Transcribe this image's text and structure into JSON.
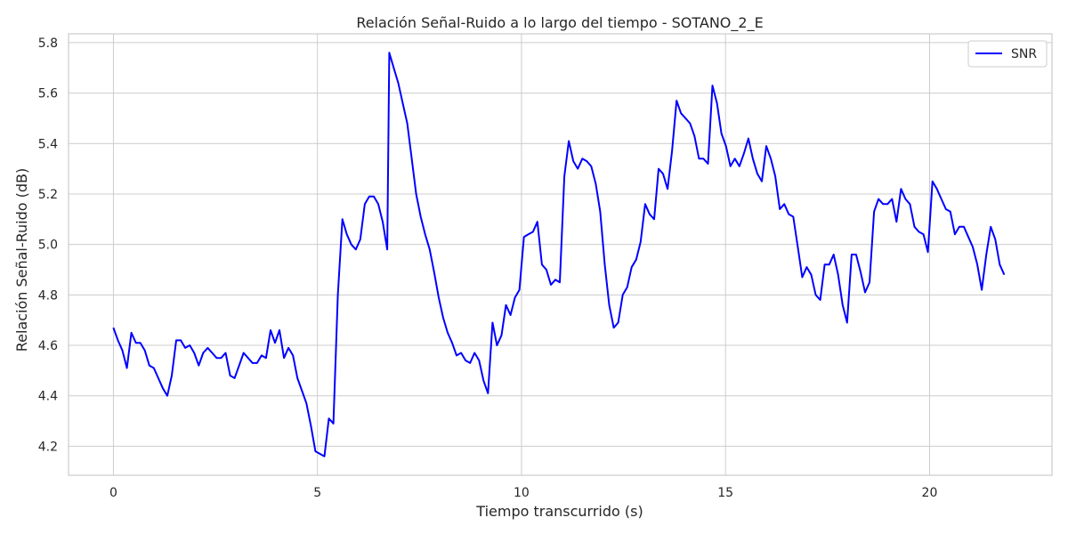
{
  "chart_data": {
    "type": "line",
    "title": "Relación Señal-Ruido a lo largo del tiempo - SOTANO_2_E",
    "xlabel": "Tiempo transcurrido (s)",
    "ylabel": "Relación Señal-Ruido (dB)",
    "xlim": [
      -1.1,
      23.0
    ],
    "ylim": [
      4.085,
      5.835
    ],
    "xticks": [
      0,
      5,
      10,
      15,
      20
    ],
    "xtick_labels": [
      "0",
      "5",
      "10",
      "15",
      "20"
    ],
    "yticks": [
      4.2,
      4.4,
      4.6,
      4.8,
      5.0,
      5.2,
      5.4,
      5.6,
      5.8
    ],
    "ytick_labels": [
      "4.2",
      "4.4",
      "4.6",
      "4.8",
      "5.0",
      "5.2",
      "5.4",
      "5.6",
      "5.8"
    ],
    "grid": true,
    "legend_position": "top-right",
    "series": [
      {
        "name": "SNR",
        "color": "#0000ff",
        "x": [
          0.0,
          0.11,
          0.22,
          0.33,
          0.44,
          0.55,
          0.66,
          0.77,
          0.88,
          0.99,
          1.1,
          1.21,
          1.32,
          1.43,
          1.54,
          1.65,
          1.76,
          1.87,
          1.98,
          2.09,
          2.2,
          2.31,
          2.42,
          2.53,
          2.64,
          2.75,
          2.86,
          2.97,
          3.08,
          3.19,
          3.3,
          3.41,
          3.52,
          3.63,
          3.74,
          3.85,
          3.96,
          4.07,
          4.18,
          4.29,
          4.4,
          4.51,
          4.62,
          4.73,
          4.84,
          4.95,
          5.06,
          5.17,
          5.28,
          5.39,
          5.5,
          5.61,
          5.72,
          5.83,
          5.94,
          6.05,
          6.16,
          6.27,
          6.38,
          6.49,
          6.6,
          6.71,
          6.76,
          6.87,
          6.98,
          7.09,
          7.2,
          7.31,
          7.42,
          7.53,
          7.64,
          7.75,
          7.86,
          7.97,
          8.08,
          8.19,
          8.3,
          8.41,
          8.52,
          8.63,
          8.74,
          8.85,
          8.96,
          9.07,
          9.18,
          9.29,
          9.4,
          9.51,
          9.62,
          9.73,
          9.84,
          9.95,
          10.06,
          10.17,
          10.28,
          10.39,
          10.5,
          10.61,
          10.72,
          10.83,
          10.94,
          11.05,
          11.16,
          11.27,
          11.38,
          11.49,
          11.6,
          11.71,
          11.82,
          11.93,
          12.04,
          12.15,
          12.26,
          12.37,
          12.48,
          12.59,
          12.7,
          12.81,
          12.92,
          13.03,
          13.14,
          13.25,
          13.36,
          13.47,
          13.58,
          13.69,
          13.8,
          13.91,
          14.02,
          14.13,
          14.24,
          14.35,
          14.46,
          14.57,
          14.68,
          14.79,
          14.9,
          15.01,
          15.12,
          15.23,
          15.34,
          15.45,
          15.56,
          15.67,
          15.78,
          15.89,
          16.0,
          16.11,
          16.22,
          16.33,
          16.44,
          16.55,
          16.66,
          16.77,
          16.88,
          16.99,
          17.1,
          17.21,
          17.32,
          17.43,
          17.54,
          17.65,
          17.76,
          17.87,
          17.98,
          18.09,
          18.2,
          18.31,
          18.42,
          18.53,
          18.64,
          18.75,
          18.86,
          18.97,
          19.08,
          19.19,
          19.3,
          19.41,
          19.52,
          19.63,
          19.74,
          19.85,
          19.96,
          20.07,
          20.18,
          20.29,
          20.4,
          20.51,
          20.62,
          20.73,
          20.84,
          20.95,
          21.06,
          21.17,
          21.28,
          21.39,
          21.5,
          21.61,
          21.72,
          21.83
        ],
        "y": [
          4.67,
          4.62,
          4.58,
          4.51,
          4.65,
          4.61,
          4.61,
          4.58,
          4.52,
          4.51,
          4.47,
          4.43,
          4.4,
          4.48,
          4.62,
          4.62,
          4.59,
          4.6,
          4.57,
          4.52,
          4.57,
          4.59,
          4.57,
          4.55,
          4.55,
          4.57,
          4.48,
          4.47,
          4.52,
          4.57,
          4.55,
          4.53,
          4.53,
          4.56,
          4.55,
          4.66,
          4.61,
          4.66,
          4.55,
          4.59,
          4.56,
          4.47,
          4.42,
          4.37,
          4.28,
          4.18,
          4.17,
          4.16,
          4.31,
          4.29,
          4.8,
          5.1,
          5.04,
          5.0,
          4.98,
          5.02,
          5.16,
          5.19,
          5.19,
          5.16,
          5.09,
          4.98,
          5.76,
          5.7,
          5.64,
          5.56,
          5.48,
          5.34,
          5.2,
          5.11,
          5.04,
          4.98,
          4.89,
          4.79,
          4.71,
          4.65,
          4.61,
          4.56,
          4.57,
          4.54,
          4.53,
          4.57,
          4.54,
          4.46,
          4.41,
          4.69,
          4.6,
          4.64,
          4.76,
          4.72,
          4.79,
          4.82,
          5.03,
          5.04,
          5.05,
          5.09,
          4.92,
          4.9,
          4.84,
          4.86,
          4.85,
          5.27,
          5.41,
          5.33,
          5.3,
          5.34,
          5.33,
          5.31,
          5.24,
          5.13,
          4.92,
          4.76,
          4.67,
          4.69,
          4.8,
          4.83,
          4.91,
          4.94,
          5.01,
          5.16,
          5.12,
          5.1,
          5.3,
          5.28,
          5.22,
          5.37,
          5.57,
          5.52,
          5.5,
          5.48,
          5.43,
          5.34,
          5.34,
          5.32,
          5.63,
          5.56,
          5.44,
          5.39,
          5.31,
          5.34,
          5.31,
          5.36,
          5.42,
          5.34,
          5.28,
          5.25,
          5.39,
          5.34,
          5.27,
          5.14,
          5.16,
          5.12,
          5.11,
          4.99,
          4.87,
          4.91,
          4.88,
          4.8,
          4.78,
          4.92,
          4.92,
          4.96,
          4.88,
          4.76,
          4.69,
          4.96,
          4.96,
          4.89,
          4.81,
          4.85,
          5.13,
          5.18,
          5.16,
          5.16,
          5.18,
          5.09,
          5.22,
          5.18,
          5.16,
          5.07,
          5.05,
          5.04,
          4.97,
          5.25,
          5.22,
          5.18,
          5.14,
          5.13,
          5.04,
          5.07,
          5.07,
          5.03,
          4.99,
          4.92,
          4.82,
          4.96,
          5.07,
          5.02,
          4.92,
          4.88
        ]
      }
    ]
  }
}
